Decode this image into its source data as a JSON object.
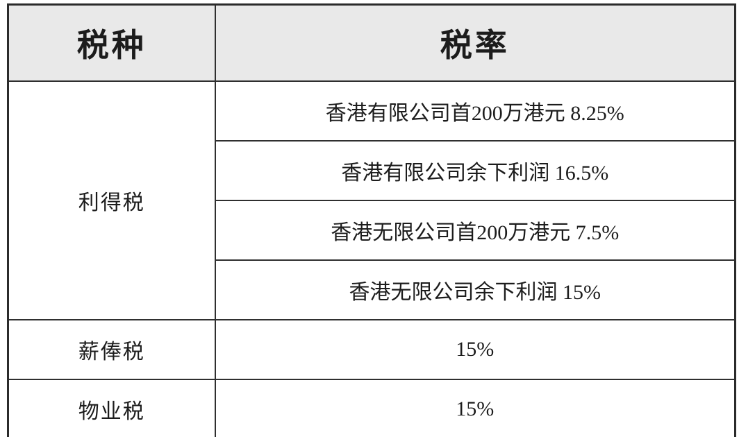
{
  "table": {
    "title_semantic": "hong-kong-tax-rates-table",
    "headers": {
      "tax_type": "税种",
      "tax_rate": "税率"
    },
    "rows": [
      {
        "type": "利得税",
        "rates": [
          "香港有限公司首200万港元 8.25%",
          "香港有限公司余下利润 16.5%",
          "香港无限公司首200万港元 7.5%",
          "香港无限公司余下利润 15%"
        ]
      },
      {
        "type": "薪俸税",
        "rates": [
          "15%"
        ]
      },
      {
        "type": "物业税",
        "rates": [
          "15%"
        ]
      }
    ],
    "colors": {
      "header_bg": "#e9e9e9",
      "border": "#2b2b2b",
      "text": "#1c1c1c",
      "body_bg": "#ffffff"
    }
  }
}
